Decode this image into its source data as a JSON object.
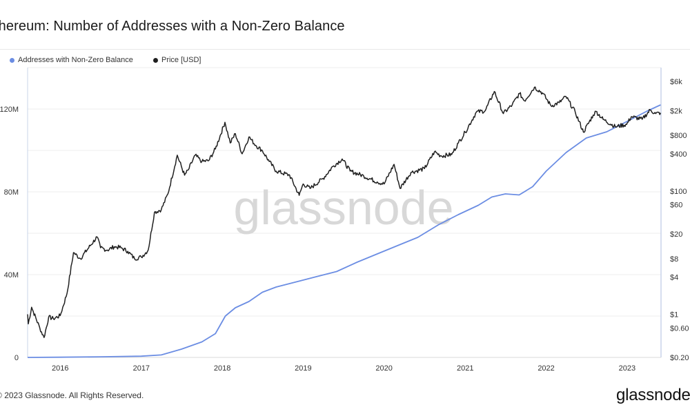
{
  "title": "thereum: Number of Addresses with a Non-Zero Balance",
  "watermark": "glassnode",
  "footer": "2023 Glassnode. All Rights Reserved.",
  "brand": "glassnode",
  "colors": {
    "addresses": "#6b8de3",
    "price": "#1f1f1f",
    "grid": "#ececec",
    "axis": "#c8d4ea"
  },
  "chart_data": {
    "type": "line",
    "title": "thereum: Number of Addresses with a Non-Zero Balance",
    "x_ticks": [
      "2016",
      "2017",
      "2018",
      "2019",
      "2020",
      "2021",
      "2022",
      "2023"
    ],
    "y_left_ticks": [
      "0",
      "40M",
      "80M",
      "120M"
    ],
    "y_left_values": [
      0,
      40000000,
      80000000,
      120000000
    ],
    "y_right_ticks": [
      "$6k",
      "$2k",
      "$800",
      "$400",
      "$100",
      "$60",
      "$20",
      "$8",
      "$4",
      "$1",
      "$0.60",
      "$0.20"
    ],
    "y_right_values": [
      6000,
      2000,
      800,
      400,
      100,
      60,
      20,
      8,
      4,
      1,
      0.6,
      0.2
    ],
    "y_right_scale": "log",
    "grid": true,
    "legend_position": "top-left",
    "series": [
      {
        "name": "Addresses with Non-Zero Balance",
        "axis": "left",
        "points": [
          [
            "2015-08-07",
            0.01
          ],
          [
            "2016-01-01",
            0.1
          ],
          [
            "2016-07-01",
            0.3
          ],
          [
            "2017-01-01",
            0.6
          ],
          [
            "2017-04-01",
            1.2
          ],
          [
            "2017-07-01",
            4.0
          ],
          [
            "2017-10-01",
            7.5
          ],
          [
            "2017-12-01",
            11.5
          ],
          [
            "2018-01-15",
            20.0
          ],
          [
            "2018-03-01",
            24.0
          ],
          [
            "2018-05-01",
            27.0
          ],
          [
            "2018-07-01",
            31.5
          ],
          [
            "2018-09-01",
            34.0
          ],
          [
            "2018-12-01",
            36.5
          ],
          [
            "2019-03-01",
            39.0
          ],
          [
            "2019-06-01",
            41.5
          ],
          [
            "2019-09-01",
            46.0
          ],
          [
            "2019-12-01",
            50.0
          ],
          [
            "2020-03-01",
            54.0
          ],
          [
            "2020-06-01",
            58.0
          ],
          [
            "2020-09-01",
            64.0
          ],
          [
            "2020-12-01",
            69.0
          ],
          [
            "2021-03-01",
            73.5
          ],
          [
            "2021-05-01",
            77.5
          ],
          [
            "2021-07-01",
            79.0
          ],
          [
            "2021-09-01",
            78.5
          ],
          [
            "2021-11-01",
            82.5
          ],
          [
            "2022-01-01",
            90.0
          ],
          [
            "2022-04-01",
            99.0
          ],
          [
            "2022-07-01",
            106.0
          ],
          [
            "2022-10-01",
            109.0
          ],
          [
            "2023-01-01",
            114.0
          ],
          [
            "2023-04-01",
            119.0
          ],
          [
            "2023-06-01",
            122.0
          ]
        ]
      },
      {
        "name": "Price [USD]",
        "axis": "right",
        "points": [
          [
            "2015-08-07",
            1.0
          ],
          [
            "2015-08-10",
            0.7
          ],
          [
            "2015-08-25",
            1.3
          ],
          [
            "2015-10-01",
            0.6
          ],
          [
            "2015-10-20",
            0.42
          ],
          [
            "2015-11-10",
            0.9
          ],
          [
            "2015-12-01",
            0.85
          ],
          [
            "2016-01-01",
            0.95
          ],
          [
            "2016-02-01",
            2.2
          ],
          [
            "2016-03-01",
            10.0
          ],
          [
            "2016-04-01",
            8.0
          ],
          [
            "2016-06-15",
            18.0
          ],
          [
            "2016-07-01",
            12.0
          ],
          [
            "2016-08-01",
            11.0
          ],
          [
            "2016-09-01",
            12.5
          ],
          [
            "2016-10-01",
            12.0
          ],
          [
            "2016-11-01",
            10.5
          ],
          [
            "2016-12-01",
            8.0
          ],
          [
            "2017-01-01",
            8.5
          ],
          [
            "2017-02-01",
            11.0
          ],
          [
            "2017-03-01",
            45.0
          ],
          [
            "2017-04-01",
            50.0
          ],
          [
            "2017-05-01",
            90.0
          ],
          [
            "2017-06-12",
            380.0
          ],
          [
            "2017-07-15",
            180.0
          ],
          [
            "2017-08-01",
            220.0
          ],
          [
            "2017-09-01",
            380.0
          ],
          [
            "2017-10-01",
            300.0
          ],
          [
            "2017-11-01",
            310.0
          ],
          [
            "2017-12-01",
            480.0
          ],
          [
            "2018-01-13",
            1300.0
          ],
          [
            "2018-02-06",
            600.0
          ],
          [
            "2018-03-01",
            850.0
          ],
          [
            "2018-04-01",
            400.0
          ],
          [
            "2018-05-01",
            750.0
          ],
          [
            "2018-06-01",
            550.0
          ],
          [
            "2018-07-01",
            450.0
          ],
          [
            "2018-08-01",
            300.0
          ],
          [
            "2018-09-01",
            210.0
          ],
          [
            "2018-11-01",
            180.0
          ],
          [
            "2018-12-14",
            85.0
          ],
          [
            "2019-01-01",
            130.0
          ],
          [
            "2019-02-01",
            110.0
          ],
          [
            "2019-04-01",
            160.0
          ],
          [
            "2019-05-15",
            250.0
          ],
          [
            "2019-06-26",
            330.0
          ],
          [
            "2019-08-01",
            210.0
          ],
          [
            "2019-10-01",
            175.0
          ],
          [
            "2019-12-01",
            140.0
          ],
          [
            "2020-01-01",
            130.0
          ],
          [
            "2020-02-15",
            270.0
          ],
          [
            "2020-03-13",
            110.0
          ],
          [
            "2020-05-01",
            200.0
          ],
          [
            "2020-07-01",
            230.0
          ],
          [
            "2020-08-15",
            430.0
          ],
          [
            "2020-09-15",
            370.0
          ],
          [
            "2020-11-01",
            390.0
          ],
          [
            "2020-12-01",
            600.0
          ],
          [
            "2021-01-01",
            900.0
          ],
          [
            "2021-02-20",
            1900.0
          ],
          [
            "2021-04-01",
            2000.0
          ],
          [
            "2021-05-12",
            4100.0
          ],
          [
            "2021-06-22",
            1800.0
          ],
          [
            "2021-08-01",
            2500.0
          ],
          [
            "2021-09-03",
            3800.0
          ],
          [
            "2021-09-25",
            2900.0
          ],
          [
            "2021-11-09",
            4800.0
          ],
          [
            "2021-12-15",
            3900.0
          ],
          [
            "2022-01-23",
            2400.0
          ],
          [
            "2022-03-01",
            2700.0
          ],
          [
            "2022-03-31",
            3400.0
          ],
          [
            "2022-05-12",
            1900.0
          ],
          [
            "2022-06-18",
            900.0
          ],
          [
            "2022-08-01",
            1700.0
          ],
          [
            "2022-08-14",
            1950.0
          ],
          [
            "2022-09-15",
            1450.0
          ],
          [
            "2022-11-09",
            1100.0
          ],
          [
            "2022-12-30",
            1200.0
          ],
          [
            "2023-01-20",
            1600.0
          ],
          [
            "2023-03-10",
            1450.0
          ],
          [
            "2023-04-15",
            2050.0
          ],
          [
            "2023-05-10",
            1800.0
          ],
          [
            "2023-06-01",
            1850.0
          ]
        ]
      }
    ]
  }
}
